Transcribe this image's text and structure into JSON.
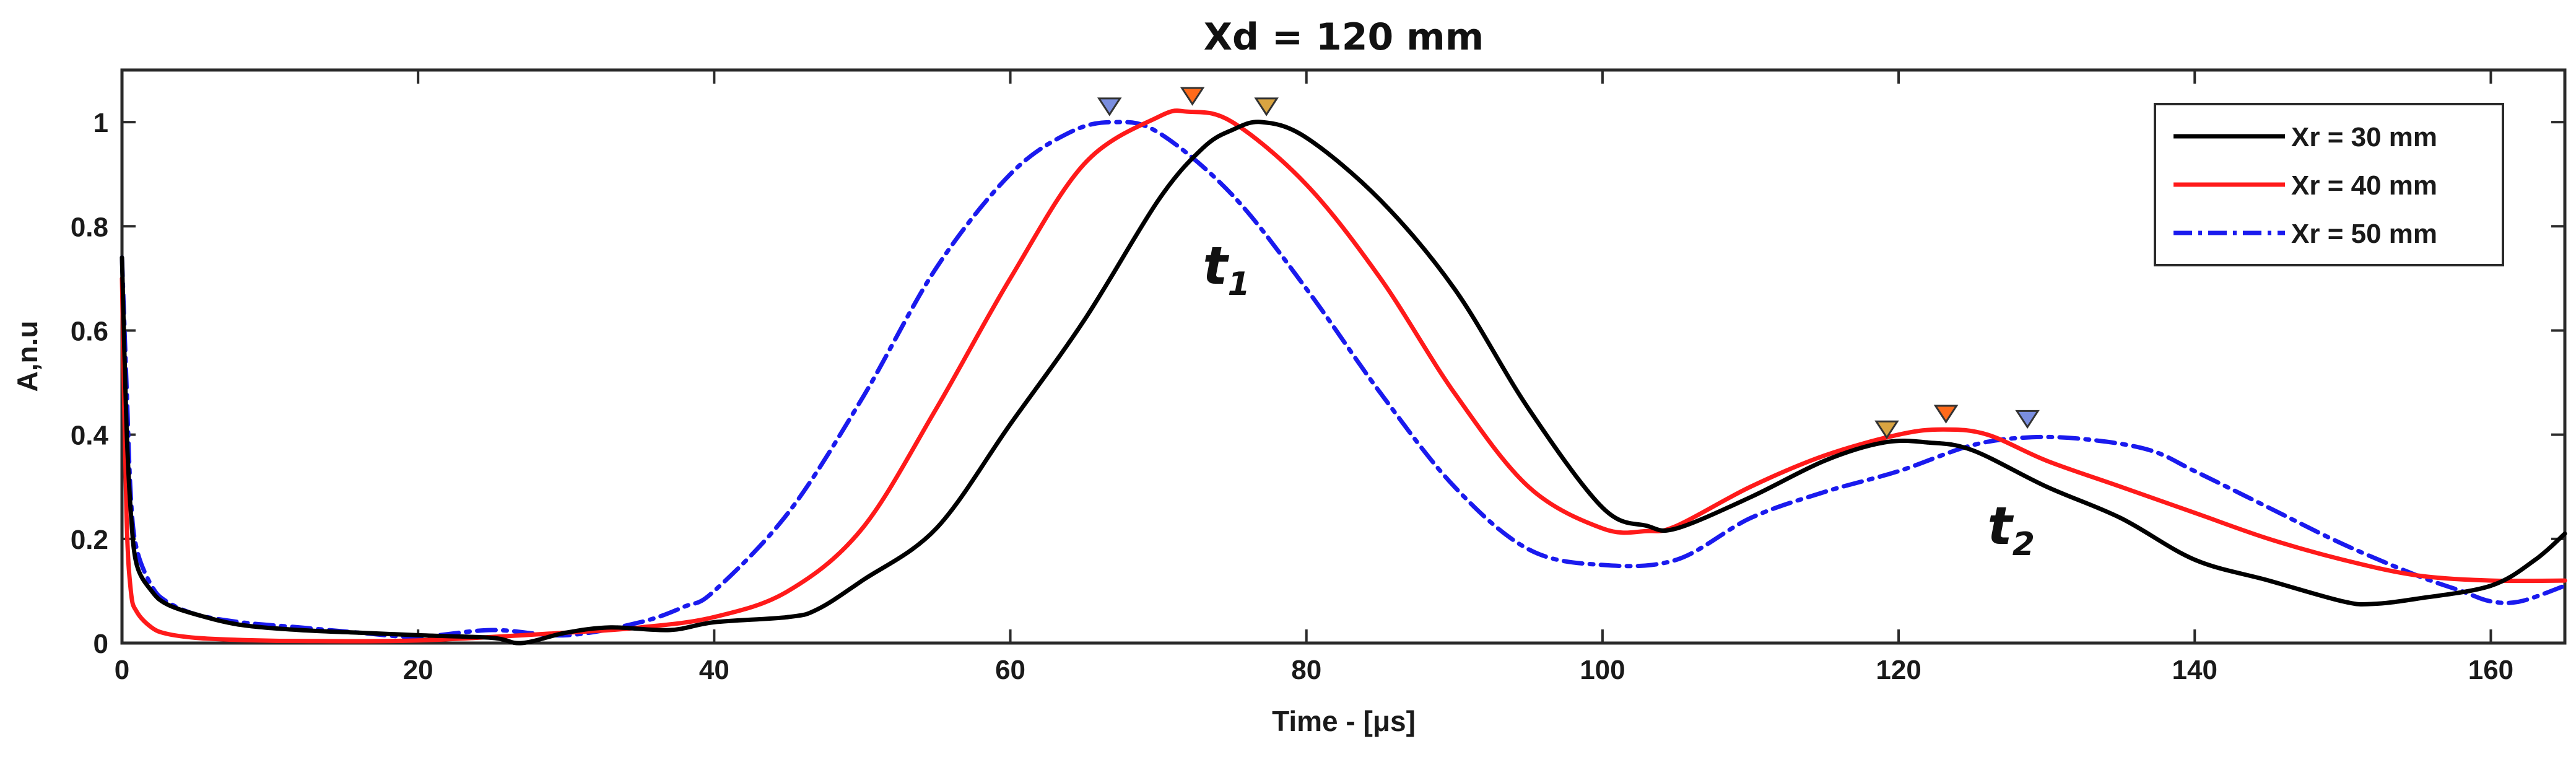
{
  "chart_data": {
    "type": "line",
    "title": "Xd = 120 mm",
    "xlabel": "Time - [μs]",
    "ylabel": "A,n.u",
    "xlim": [
      0,
      165
    ],
    "ylim": [
      0,
      1.1
    ],
    "xticks": [
      "0",
      "20",
      "40",
      "60",
      "80",
      "100",
      "120",
      "140",
      "160"
    ],
    "yticks": [
      "0",
      "0.2",
      "0.4",
      "0.6",
      "0.8",
      "1"
    ],
    "grid": false,
    "legend_position": "top-right",
    "series": [
      {
        "name": "Xr = 30 mm",
        "color": "#000000",
        "style": "solid",
        "marker_color": "#d9a441",
        "x": [
          0,
          0.3,
          0.6,
          1,
          2,
          3,
          5,
          8,
          12,
          16,
          20,
          25,
          27,
          30,
          33,
          37,
          40,
          45,
          47,
          50,
          55,
          60,
          65,
          70,
          73,
          75,
          77,
          80,
          85,
          90,
          95,
          100,
          103,
          105,
          110,
          115,
          119,
          122,
          125,
          130,
          135,
          140,
          145,
          150,
          152,
          155,
          160,
          163,
          165
        ],
        "y": [
          0.74,
          0.42,
          0.25,
          0.15,
          0.1,
          0.075,
          0.055,
          0.035,
          0.025,
          0.02,
          0.015,
          0.01,
          0.0,
          0.02,
          0.03,
          0.025,
          0.04,
          0.05,
          0.065,
          0.12,
          0.22,
          0.42,
          0.62,
          0.85,
          0.95,
          0.985,
          1.0,
          0.97,
          0.85,
          0.68,
          0.45,
          0.26,
          0.225,
          0.22,
          0.28,
          0.35,
          0.385,
          0.385,
          0.37,
          0.3,
          0.24,
          0.16,
          0.12,
          0.08,
          0.075,
          0.085,
          0.11,
          0.16,
          0.21
        ],
        "marker_points": [
          {
            "x": 77.3,
            "y": 1.03
          },
          {
            "x": 119.2,
            "y": 0.41
          }
        ]
      },
      {
        "name": "Xr = 40 mm",
        "color": "#ff1a1a",
        "style": "solid",
        "marker_color": "#ff6a1a",
        "x": [
          0,
          0.3,
          0.6,
          1,
          2,
          3,
          5,
          8,
          12,
          20,
          30,
          35,
          40,
          45,
          50,
          55,
          60,
          65,
          70,
          72,
          75,
          80,
          85,
          90,
          95,
          100,
          103,
          105,
          110,
          115,
          120,
          123,
          126,
          130,
          135,
          140,
          145,
          150,
          155,
          160,
          165
        ],
        "y": [
          0.7,
          0.25,
          0.1,
          0.06,
          0.03,
          0.018,
          0.01,
          0.006,
          0.004,
          0.005,
          0.02,
          0.03,
          0.05,
          0.1,
          0.22,
          0.45,
          0.7,
          0.92,
          1.01,
          1.02,
          1.0,
          0.88,
          0.7,
          0.48,
          0.3,
          0.22,
          0.215,
          0.225,
          0.3,
          0.36,
          0.4,
          0.41,
          0.4,
          0.35,
          0.3,
          0.25,
          0.2,
          0.16,
          0.13,
          0.12,
          0.12
        ],
        "marker_points": [
          {
            "x": 72.3,
            "y": 1.05
          },
          {
            "x": 123.2,
            "y": 0.44
          }
        ]
      },
      {
        "name": "Xr = 50 mm",
        "color": "#1a1aee",
        "style": "dash-dot",
        "marker_color": "#7a8ee0",
        "x": [
          0,
          0.3,
          0.6,
          1,
          2,
          3,
          5,
          8,
          12,
          16,
          20,
          25,
          30,
          35,
          38,
          40,
          45,
          50,
          55,
          60,
          64,
          67,
          70,
          75,
          80,
          85,
          90,
          95,
          100,
          105,
          110,
          115,
          120,
          125,
          129,
          133,
          137,
          140,
          145,
          150,
          155,
          158,
          160,
          162,
          165
        ],
        "y": [
          0.74,
          0.5,
          0.28,
          0.18,
          0.11,
          0.08,
          0.055,
          0.04,
          0.03,
          0.02,
          0.012,
          0.025,
          0.015,
          0.04,
          0.07,
          0.1,
          0.25,
          0.47,
          0.72,
          0.9,
          0.98,
          1.0,
          0.98,
          0.86,
          0.68,
          0.48,
          0.3,
          0.18,
          0.15,
          0.16,
          0.24,
          0.29,
          0.33,
          0.38,
          0.395,
          0.39,
          0.37,
          0.33,
          0.26,
          0.19,
          0.13,
          0.1,
          0.08,
          0.08,
          0.11
        ],
        "marker_points": [
          {
            "x": 66.7,
            "y": 1.03
          },
          {
            "x": 128.7,
            "y": 0.43
          }
        ]
      }
    ],
    "annotations": [
      {
        "main": "t",
        "sub": "1",
        "x": 73,
        "y": 0.69
      },
      {
        "main": "t",
        "sub": "2",
        "x": 126,
        "y": 0.19
      }
    ]
  }
}
